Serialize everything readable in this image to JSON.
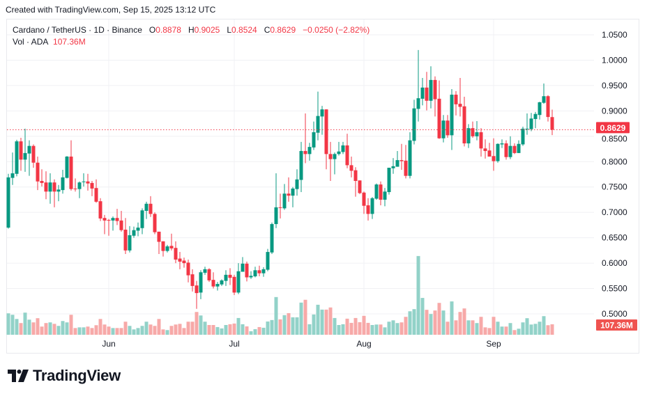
{
  "created_text": "Created with TradingView.com, Sep 15, 2025 13:12 UTC",
  "legend": {
    "symbol": "Cardano / TetherUS · 1D · Binance",
    "open_label": "O",
    "open": "0.8878",
    "high_label": "H",
    "high": "0.9025",
    "low_label": "L",
    "low": "0.8524",
    "close_label": "C",
    "close": "0.8629",
    "change": "−0.0250 (−2.82%)",
    "volume_label": "Vol · ADA",
    "volume": "107.36M"
  },
  "colors": {
    "up": "#089981",
    "down": "#F23645",
    "up_volume": "#92d2c8",
    "down_volume": "#f7a9a8",
    "grid": "#f0f1f4",
    "text": "#131722"
  },
  "logo_text": "TradingView",
  "logo_icon": "tradingview-logo-icon",
  "chart_data": {
    "type": "candlestick",
    "symbol": "Cardano / TetherUS",
    "interval": "1D",
    "exchange": "Binance",
    "price_axis": {
      "position": "right",
      "ylim": [
        0.5,
        1.05
      ],
      "ticks": [
        "1.0500",
        "1.0000",
        "0.9500",
        "0.9000",
        "0.8500",
        "0.8000",
        "0.7500",
        "0.7000",
        "0.6500",
        "0.6000",
        "0.5500",
        "0.5000"
      ]
    },
    "time_axis": {
      "ticks": [
        {
          "label": "Jun",
          "date": "2025-06-01"
        },
        {
          "label": "Jul",
          "date": "2025-07-01"
        },
        {
          "label": "Aug",
          "date": "2025-08-01"
        },
        {
          "label": "Sep",
          "date": "2025-09-01"
        }
      ]
    },
    "last_price_label": "0.8629",
    "last_volume_label": "107.36M",
    "grid": true,
    "columns": [
      "date",
      "open",
      "high",
      "low",
      "close",
      "volume_M"
    ],
    "candles": [
      [
        "2025-05-08",
        0.67,
        0.776,
        0.668,
        0.769,
        220
      ],
      [
        "2025-05-09",
        0.768,
        0.818,
        0.754,
        0.777,
        205
      ],
      [
        "2025-05-10",
        0.776,
        0.843,
        0.771,
        0.84,
        162
      ],
      [
        "2025-05-11",
        0.84,
        0.847,
        0.782,
        0.804,
        120
      ],
      [
        "2025-05-12",
        0.804,
        0.865,
        0.78,
        0.817,
        227
      ],
      [
        "2025-05-13",
        0.816,
        0.842,
        0.772,
        0.831,
        155
      ],
      [
        "2025-05-14",
        0.831,
        0.834,
        0.788,
        0.798,
        127
      ],
      [
        "2025-05-15",
        0.798,
        0.81,
        0.744,
        0.761,
        170
      ],
      [
        "2025-05-16",
        0.762,
        0.785,
        0.751,
        0.758,
        84
      ],
      [
        "2025-05-17",
        0.759,
        0.781,
        0.726,
        0.741,
        120
      ],
      [
        "2025-05-18",
        0.741,
        0.777,
        0.717,
        0.759,
        127
      ],
      [
        "2025-05-19",
        0.759,
        0.765,
        0.71,
        0.741,
        112
      ],
      [
        "2025-05-20",
        0.741,
        0.754,
        0.722,
        0.745,
        91
      ],
      [
        "2025-05-21",
        0.744,
        0.784,
        0.737,
        0.769,
        141
      ],
      [
        "2025-05-22",
        0.768,
        0.811,
        0.767,
        0.81,
        127
      ],
      [
        "2025-05-23",
        0.81,
        0.842,
        0.743,
        0.746,
        205
      ],
      [
        "2025-05-24",
        0.747,
        0.767,
        0.741,
        0.746,
        69
      ],
      [
        "2025-05-25",
        0.746,
        0.761,
        0.728,
        0.759,
        76
      ],
      [
        "2025-05-26",
        0.76,
        0.777,
        0.751,
        0.761,
        76
      ],
      [
        "2025-05-27",
        0.761,
        0.776,
        0.743,
        0.757,
        84
      ],
      [
        "2025-05-28",
        0.758,
        0.762,
        0.732,
        0.747,
        69
      ],
      [
        "2025-05-29",
        0.748,
        0.765,
        0.719,
        0.721,
        98
      ],
      [
        "2025-05-30",
        0.722,
        0.728,
        0.683,
        0.688,
        162
      ],
      [
        "2025-05-31",
        0.689,
        0.695,
        0.657,
        0.684,
        105
      ],
      [
        "2025-06-01",
        0.685,
        0.687,
        0.654,
        0.684,
        84
      ],
      [
        "2025-06-02",
        0.684,
        0.692,
        0.664,
        0.689,
        69
      ],
      [
        "2025-06-03",
        0.689,
        0.707,
        0.675,
        0.683,
        69
      ],
      [
        "2025-06-04",
        0.684,
        0.703,
        0.662,
        0.665,
        69
      ],
      [
        "2025-06-05",
        0.666,
        0.689,
        0.618,
        0.625,
        134
      ],
      [
        "2025-06-06",
        0.625,
        0.673,
        0.621,
        0.655,
        91
      ],
      [
        "2025-06-07",
        0.654,
        0.672,
        0.65,
        0.665,
        55
      ],
      [
        "2025-06-08",
        0.664,
        0.68,
        0.653,
        0.67,
        69
      ],
      [
        "2025-06-09",
        0.669,
        0.708,
        0.657,
        0.704,
        91
      ],
      [
        "2025-06-10",
        0.703,
        0.721,
        0.687,
        0.717,
        134
      ],
      [
        "2025-06-11",
        0.717,
        0.732,
        0.691,
        0.697,
        105
      ],
      [
        "2025-06-12",
        0.697,
        0.7,
        0.657,
        0.661,
        91
      ],
      [
        "2025-06-13",
        0.662,
        0.662,
        0.618,
        0.642,
        162
      ],
      [
        "2025-06-14",
        0.643,
        0.643,
        0.613,
        0.624,
        55
      ],
      [
        "2025-06-15",
        0.624,
        0.636,
        0.621,
        0.633,
        48
      ],
      [
        "2025-06-16",
        0.634,
        0.658,
        0.625,
        0.629,
        91
      ],
      [
        "2025-06-17",
        0.63,
        0.643,
        0.6,
        0.607,
        105
      ],
      [
        "2025-06-18",
        0.609,
        0.622,
        0.588,
        0.603,
        112
      ],
      [
        "2025-06-19",
        0.605,
        0.611,
        0.591,
        0.6,
        69
      ],
      [
        "2025-06-20",
        0.601,
        0.607,
        0.562,
        0.576,
        134
      ],
      [
        "2025-06-21",
        0.578,
        0.588,
        0.544,
        0.555,
        134
      ],
      [
        "2025-06-22",
        0.556,
        0.565,
        0.51,
        0.541,
        234
      ],
      [
        "2025-06-23",
        0.542,
        0.586,
        0.529,
        0.582,
        198
      ],
      [
        "2025-06-24",
        0.581,
        0.593,
        0.577,
        0.588,
        134
      ],
      [
        "2025-06-25",
        0.588,
        0.59,
        0.563,
        0.566,
        100
      ],
      [
        "2025-06-26",
        0.567,
        0.582,
        0.55,
        0.554,
        100
      ],
      [
        "2025-06-27",
        0.554,
        0.563,
        0.546,
        0.559,
        79
      ],
      [
        "2025-06-28",
        0.558,
        0.568,
        0.555,
        0.566,
        65
      ],
      [
        "2025-06-29",
        0.565,
        0.586,
        0.555,
        0.577,
        100
      ],
      [
        "2025-06-30",
        0.577,
        0.59,
        0.557,
        0.571,
        108
      ],
      [
        "2025-07-01",
        0.573,
        0.577,
        0.537,
        0.542,
        115
      ],
      [
        "2025-07-02",
        0.542,
        0.6,
        0.539,
        0.584,
        172
      ],
      [
        "2025-07-03",
        0.583,
        0.612,
        0.583,
        0.599,
        108
      ],
      [
        "2025-07-04",
        0.599,
        0.603,
        0.564,
        0.572,
        86
      ],
      [
        "2025-07-05",
        0.572,
        0.584,
        0.569,
        0.575,
        36
      ],
      [
        "2025-07-06",
        0.574,
        0.593,
        0.572,
        0.586,
        57
      ],
      [
        "2025-07-07",
        0.586,
        0.595,
        0.574,
        0.58,
        79
      ],
      [
        "2025-07-08",
        0.58,
        0.592,
        0.573,
        0.588,
        72
      ],
      [
        "2025-07-09",
        0.587,
        0.628,
        0.584,
        0.622,
        136
      ],
      [
        "2025-07-10",
        0.621,
        0.68,
        0.618,
        0.677,
        151
      ],
      [
        "2025-07-11",
        0.677,
        0.777,
        0.669,
        0.71,
        387
      ],
      [
        "2025-07-12",
        0.71,
        0.737,
        0.688,
        0.709,
        158
      ],
      [
        "2025-07-13",
        0.708,
        0.756,
        0.705,
        0.737,
        201
      ],
      [
        "2025-07-14",
        0.737,
        0.769,
        0.721,
        0.733,
        222
      ],
      [
        "2025-07-15",
        0.733,
        0.75,
        0.71,
        0.747,
        179
      ],
      [
        "2025-07-16",
        0.746,
        0.785,
        0.733,
        0.765,
        179
      ],
      [
        "2025-07-17",
        0.764,
        0.839,
        0.74,
        0.821,
        330
      ],
      [
        "2025-07-18",
        0.821,
        0.895,
        0.797,
        0.815,
        359
      ],
      [
        "2025-07-19",
        0.815,
        0.837,
        0.802,
        0.829,
        108
      ],
      [
        "2025-07-20",
        0.828,
        0.879,
        0.823,
        0.858,
        208
      ],
      [
        "2025-07-21",
        0.857,
        0.938,
        0.842,
        0.89,
        308
      ],
      [
        "2025-07-22",
        0.889,
        0.91,
        0.853,
        0.903,
        258
      ],
      [
        "2025-07-23",
        0.903,
        0.903,
        0.785,
        0.815,
        258
      ],
      [
        "2025-07-24",
        0.815,
        0.839,
        0.762,
        0.805,
        280
      ],
      [
        "2025-07-25",
        0.805,
        0.818,
        0.775,
        0.815,
        172
      ],
      [
        "2025-07-26",
        0.815,
        0.839,
        0.812,
        0.82,
        100
      ],
      [
        "2025-07-27",
        0.819,
        0.839,
        0.815,
        0.832,
        108
      ],
      [
        "2025-07-28",
        0.832,
        0.855,
        0.787,
        0.793,
        165
      ],
      [
        "2025-07-29",
        0.793,
        0.81,
        0.769,
        0.782,
        122
      ],
      [
        "2025-07-30",
        0.783,
        0.789,
        0.731,
        0.762,
        172
      ],
      [
        "2025-07-31",
        0.763,
        0.763,
        0.736,
        0.738,
        129
      ],
      [
        "2025-08-01",
        0.739,
        0.741,
        0.697,
        0.713,
        194
      ],
      [
        "2025-08-02",
        0.714,
        0.728,
        0.684,
        0.697,
        122
      ],
      [
        "2025-08-03",
        0.697,
        0.73,
        0.687,
        0.728,
        100
      ],
      [
        "2025-08-04",
        0.727,
        0.757,
        0.725,
        0.755,
        105
      ],
      [
        "2025-08-05",
        0.755,
        0.761,
        0.714,
        0.725,
        105
      ],
      [
        "2025-08-06",
        0.725,
        0.748,
        0.712,
        0.741,
        76
      ],
      [
        "2025-08-07",
        0.74,
        0.788,
        0.735,
        0.788,
        134
      ],
      [
        "2025-08-08",
        0.787,
        0.807,
        0.776,
        0.791,
        148
      ],
      [
        "2025-08-09",
        0.79,
        0.821,
        0.79,
        0.803,
        120
      ],
      [
        "2025-08-10",
        0.803,
        0.835,
        0.784,
        0.801,
        127
      ],
      [
        "2025-08-11",
        0.802,
        0.833,
        0.767,
        0.772,
        184
      ],
      [
        "2025-08-12",
        0.772,
        0.858,
        0.767,
        0.842,
        241
      ],
      [
        "2025-08-13",
        0.841,
        0.922,
        0.834,
        0.905,
        263
      ],
      [
        "2025-08-14",
        0.904,
        1.02,
        0.879,
        0.925,
        808
      ],
      [
        "2025-08-15",
        0.924,
        0.965,
        0.911,
        0.946,
        378
      ],
      [
        "2025-08-16",
        0.946,
        0.977,
        0.901,
        0.92,
        256
      ],
      [
        "2025-08-17",
        0.92,
        0.988,
        0.905,
        0.961,
        213
      ],
      [
        "2025-08-18",
        0.961,
        0.968,
        0.889,
        0.923,
        249
      ],
      [
        "2025-08-19",
        0.924,
        0.96,
        0.845,
        0.846,
        327
      ],
      [
        "2025-08-20",
        0.846,
        0.892,
        0.838,
        0.881,
        249
      ],
      [
        "2025-08-21",
        0.881,
        0.892,
        0.847,
        0.852,
        134
      ],
      [
        "2025-08-22",
        0.852,
        0.943,
        0.823,
        0.932,
        342
      ],
      [
        "2025-08-23",
        0.932,
        0.939,
        0.891,
        0.913,
        148
      ],
      [
        "2025-08-24",
        0.914,
        0.965,
        0.889,
        0.908,
        234
      ],
      [
        "2025-08-25",
        0.909,
        0.928,
        0.83,
        0.836,
        270
      ],
      [
        "2025-08-26",
        0.836,
        0.874,
        0.827,
        0.866,
        148
      ],
      [
        "2025-08-27",
        0.866,
        0.879,
        0.847,
        0.85,
        148
      ],
      [
        "2025-08-28",
        0.85,
        0.88,
        0.842,
        0.858,
        120
      ],
      [
        "2025-08-29",
        0.858,
        0.866,
        0.81,
        0.826,
        184
      ],
      [
        "2025-08-30",
        0.826,
        0.844,
        0.806,
        0.821,
        76
      ],
      [
        "2025-08-31",
        0.822,
        0.837,
        0.81,
        0.81,
        69
      ],
      [
        "2025-09-01",
        0.811,
        0.846,
        0.782,
        0.801,
        184
      ],
      [
        "2025-09-02",
        0.801,
        0.836,
        0.798,
        0.835,
        134
      ],
      [
        "2025-09-03",
        0.834,
        0.844,
        0.827,
        0.836,
        84
      ],
      [
        "2025-09-04",
        0.836,
        0.842,
        0.804,
        0.809,
        84
      ],
      [
        "2025-09-05",
        0.809,
        0.85,
        0.805,
        0.831,
        120
      ],
      [
        "2025-09-06",
        0.831,
        0.836,
        0.815,
        0.817,
        48
      ],
      [
        "2025-09-07",
        0.817,
        0.842,
        0.817,
        0.835,
        62
      ],
      [
        "2025-09-08",
        0.834,
        0.869,
        0.831,
        0.865,
        127
      ],
      [
        "2025-09-09",
        0.864,
        0.895,
        0.853,
        0.865,
        170
      ],
      [
        "2025-09-10",
        0.864,
        0.896,
        0.86,
        0.885,
        105
      ],
      [
        "2025-09-11",
        0.884,
        0.898,
        0.866,
        0.894,
        112
      ],
      [
        "2025-09-12",
        0.892,
        0.918,
        0.883,
        0.917,
        134
      ],
      [
        "2025-09-13",
        0.916,
        0.954,
        0.914,
        0.929,
        191
      ],
      [
        "2025-09-14",
        0.929,
        0.931,
        0.879,
        0.888,
        98
      ],
      [
        "2025-09-15",
        0.8878,
        0.9025,
        0.8524,
        0.8629,
        107.36
      ]
    ]
  }
}
